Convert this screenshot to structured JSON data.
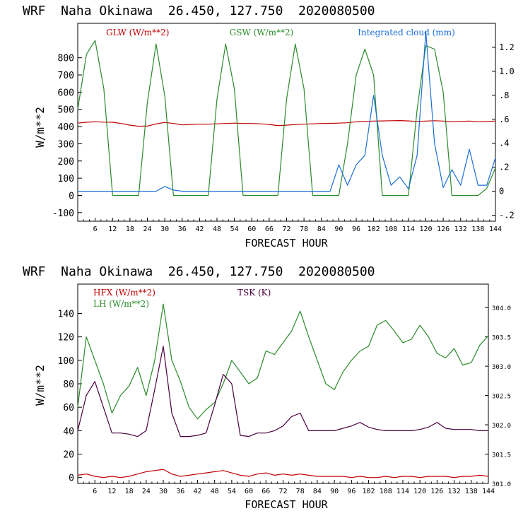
{
  "panels": [
    {
      "title": "WRF  Naha Okinawa  26.450, 127.750  2020080500",
      "xlabel": "FORECAST HOUR",
      "ylabel": "W/m**2"
    },
    {
      "title": "WRF  Naha Okinawa  26.450, 127.750  2020080500",
      "xlabel": "FORECAST HOUR",
      "ylabel": "W/m**2"
    }
  ],
  "chart_data": [
    {
      "type": "line",
      "title": "WRF  Naha Okinawa  26.450, 127.750  2020080500",
      "xlabel": "FORECAST HOUR",
      "ylabel": "W/m**2",
      "xlim": [
        0,
        144
      ],
      "ylim": [
        -150,
        1000
      ],
      "y2lim": [
        -0.25,
        1.4
      ],
      "grid": false,
      "legend_placement": "top",
      "x_ticks": [
        6,
        12,
        18,
        24,
        30,
        36,
        42,
        48,
        54,
        60,
        66,
        72,
        78,
        84,
        90,
        96,
        102,
        108,
        114,
        120,
        126,
        132,
        138,
        144
      ],
      "y_ticks": [
        -100,
        0,
        100,
        200,
        300,
        400,
        500,
        600,
        700,
        800
      ],
      "y2_ticks": [
        -0.2,
        0,
        0.2,
        0.4,
        0.6,
        0.8,
        1.0,
        1.2
      ],
      "y2_tick_labels": [
        "-.2",
        "0",
        ".2",
        ".4",
        ".6",
        ".8",
        "1.0",
        "1.2"
      ],
      "x": [
        0,
        3,
        6,
        9,
        12,
        15,
        18,
        21,
        24,
        27,
        30,
        33,
        36,
        39,
        42,
        45,
        48,
        51,
        54,
        57,
        60,
        63,
        66,
        69,
        72,
        75,
        78,
        81,
        84,
        87,
        90,
        93,
        96,
        99,
        102,
        105,
        108,
        111,
        114,
        117,
        120,
        123,
        126,
        129,
        132,
        135,
        138,
        141,
        144
      ],
      "series": [
        {
          "name": "GLW (W/m**2)",
          "color": "#c00000",
          "axis": "left",
          "values": [
            420,
            425,
            428,
            426,
            425,
            418,
            408,
            402,
            403,
            415,
            424,
            418,
            410,
            412,
            414,
            414,
            416,
            418,
            420,
            418,
            418,
            416,
            412,
            406,
            408,
            412,
            414,
            416,
            418,
            419,
            420,
            422,
            428,
            430,
            432,
            433,
            434,
            435,
            433,
            430,
            432,
            434,
            432,
            428,
            430,
            432,
            428,
            430,
            432
          ]
        },
        {
          "name": "GSW (W/m**2)",
          "color": "#2a8a2a",
          "axis": "left",
          "values": [
            500,
            820,
            900,
            620,
            0,
            0,
            0,
            0,
            540,
            880,
            580,
            0,
            0,
            0,
            0,
            0,
            560,
            880,
            620,
            0,
            0,
            0,
            0,
            0,
            560,
            880,
            620,
            0,
            0,
            0,
            0,
            300,
            700,
            850,
            700,
            0,
            0,
            0,
            0,
            500,
            870,
            850,
            600,
            0,
            0,
            0,
            0,
            40,
            160
          ]
        },
        {
          "name": "Integrated cloud (mm)",
          "color": "#1a6fd6",
          "axis": "right",
          "values": [
            0,
            0,
            0,
            0,
            0,
            0,
            0,
            0,
            0,
            0,
            0.04,
            0.01,
            0,
            0,
            0,
            0,
            0,
            0,
            0,
            0,
            0,
            0,
            0,
            0,
            0,
            0,
            0,
            0,
            0,
            0,
            0.22,
            0.05,
            0.22,
            0.3,
            0.8,
            0.3,
            0.05,
            0.12,
            0.02,
            0.3,
            1.33,
            0.4,
            0.03,
            0.18,
            0.05,
            0.35,
            0.05,
            0.05,
            0.28
          ]
        }
      ]
    },
    {
      "type": "line",
      "title": "WRF  Naha Okinawa  26.450, 127.750  2020080500",
      "xlabel": "FORECAST HOUR",
      "ylabel": "W/m**2",
      "xlim": [
        0,
        144
      ],
      "ylim": [
        -5,
        165
      ],
      "y2lim": [
        301.0,
        304.4
      ],
      "grid": false,
      "legend_placement": "top-left",
      "x_ticks": [
        6,
        12,
        18,
        24,
        30,
        36,
        42,
        48,
        54,
        60,
        66,
        72,
        78,
        84,
        90,
        96,
        102,
        108,
        114,
        120,
        126,
        132,
        138,
        144
      ],
      "y_ticks": [
        0,
        20,
        40,
        60,
        80,
        100,
        120,
        140
      ],
      "y2_ticks": [
        301.0,
        301.5,
        302.0,
        302.5,
        303.0,
        303.5,
        304.0
      ],
      "y2_tick_labels": [
        "301.0",
        "301.5",
        "302.0",
        "302.5",
        "303.0",
        "303.5",
        "304.0"
      ],
      "x": [
        0,
        3,
        6,
        9,
        12,
        15,
        18,
        21,
        24,
        27,
        30,
        33,
        36,
        39,
        42,
        45,
        48,
        51,
        54,
        57,
        60,
        63,
        66,
        69,
        72,
        75,
        78,
        81,
        84,
        87,
        90,
        93,
        96,
        99,
        102,
        105,
        108,
        111,
        114,
        117,
        120,
        123,
        126,
        129,
        132,
        135,
        138,
        141,
        144
      ],
      "series": [
        {
          "name": "HFX (W/m**2)",
          "color": "#c00000",
          "axis": "left",
          "values": [
            2,
            3,
            1,
            0,
            1,
            0,
            1,
            3,
            5,
            6,
            7,
            3,
            1,
            2,
            3,
            4,
            5,
            6,
            4,
            2,
            1,
            3,
            4,
            2,
            3,
            2,
            3,
            2,
            1,
            1,
            1,
            1,
            0,
            1,
            0,
            0,
            1,
            0,
            1,
            1,
            0,
            1,
            1,
            1,
            0,
            1,
            1,
            2,
            1
          ]
        },
        {
          "name": "LH (W/m**2)",
          "color": "#2a8a2a",
          "axis": "left",
          "values": [
            60,
            120,
            100,
            80,
            55,
            70,
            78,
            94,
            70,
            100,
            148,
            100,
            82,
            60,
            50,
            58,
            64,
            80,
            100,
            90,
            80,
            85,
            108,
            105,
            115,
            125,
            142,
            120,
            100,
            80,
            75,
            90,
            100,
            108,
            112,
            130,
            134,
            125,
            115,
            118,
            130,
            120,
            106,
            102,
            110,
            96,
            98,
            113,
            121
          ]
        },
        {
          "name": "TSK (K)",
          "color": "#4b0040",
          "axis": "left",
          "values": [
            40,
            70,
            82,
            60,
            38,
            38,
            37,
            35,
            40,
            75,
            112,
            55,
            35,
            35,
            36,
            38,
            62,
            88,
            80,
            36,
            35,
            38,
            38,
            40,
            44,
            52,
            55,
            40,
            40,
            40,
            40,
            42,
            44,
            47,
            43,
            41,
            40,
            40,
            40,
            40,
            41,
            43,
            47,
            42,
            41,
            41,
            41,
            40,
            40
          ]
        }
      ]
    }
  ]
}
